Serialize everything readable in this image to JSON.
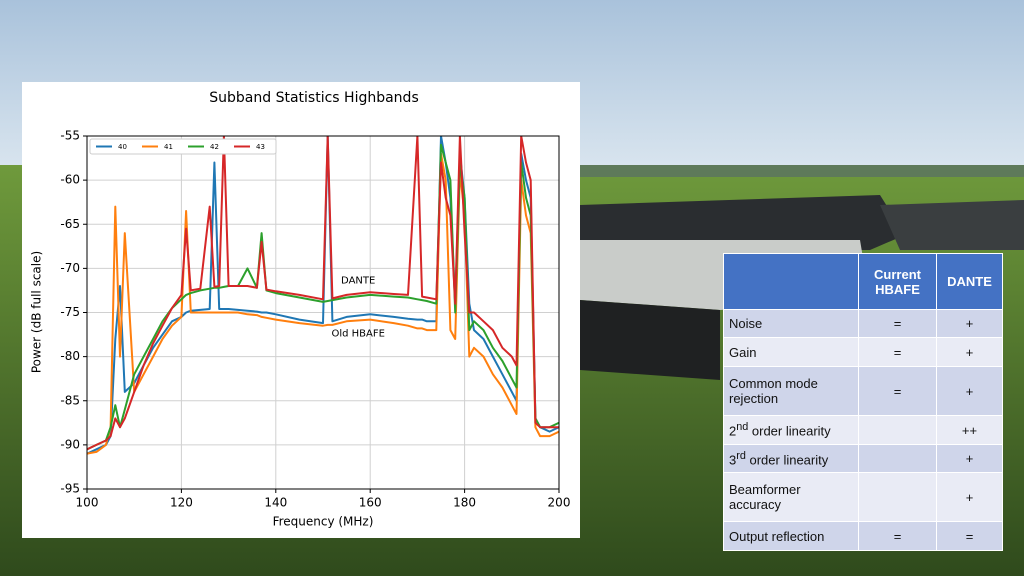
{
  "chart_data": {
    "type": "line",
    "title": "Subband Statistics Highbands",
    "x_label": "Frequency (MHz)",
    "y_label": "Power (dB full scale)",
    "xlim": [
      100,
      200
    ],
    "ylim": [
      -95,
      -55
    ],
    "xticks": [
      100,
      120,
      140,
      160,
      180,
      200
    ],
    "yticks": [
      -95,
      -90,
      -85,
      -80,
      -75,
      -70,
      -65,
      -60,
      -55
    ],
    "grid": true,
    "legend": "upper-left",
    "annotations": [
      "DANTE",
      "Old HBAFE"
    ],
    "x": [
      100,
      102,
      104,
      105,
      106,
      107,
      108,
      110,
      112,
      114,
      116,
      118,
      120,
      121,
      122,
      124,
      126,
      127,
      128,
      129,
      130,
      132,
      134,
      136,
      137,
      138,
      140,
      145,
      150,
      151,
      152,
      155,
      160,
      165,
      168,
      170,
      171,
      172,
      174,
      175,
      176,
      177,
      178,
      179,
      180,
      181,
      182,
      184,
      186,
      188,
      190,
      191,
      192,
      193,
      194,
      195,
      196,
      198,
      200
    ],
    "series": [
      {
        "name": "40",
        "color": "#1f77b4",
        "values": [
          -91,
          -90.5,
          -90,
          -89,
          -78,
          -72,
          -84,
          -83,
          -81,
          -79,
          -77.5,
          -76,
          -75.5,
          -75,
          -74.8,
          -74.7,
          -74.6,
          -58,
          -74.6,
          -74.6,
          -74.6,
          -74.7,
          -74.8,
          -74.9,
          -75,
          -75,
          -75.2,
          -75.8,
          -76.2,
          -55,
          -76,
          -75.5,
          -75.2,
          -75.5,
          -75.7,
          -75.8,
          -75.8,
          -76,
          -76,
          -55,
          -58,
          -62,
          -74,
          -57,
          -62,
          -74,
          -77,
          -78,
          -80,
          -82,
          -84,
          -85,
          -57,
          -60,
          -62,
          -87,
          -88,
          -88.5,
          -88
        ]
      },
      {
        "name": "41",
        "color": "#ff7f0e",
        "values": [
          -91,
          -90.8,
          -90,
          -88,
          -63,
          -80,
          -66,
          -84,
          -82,
          -80,
          -78,
          -76.5,
          -75.5,
          -63.5,
          -75,
          -75,
          -75,
          -75,
          -75,
          -75,
          -75,
          -75,
          -75.2,
          -75.3,
          -75.5,
          -75.6,
          -75.8,
          -76.2,
          -76.5,
          -76.4,
          -76.4,
          -76,
          -75.8,
          -76.2,
          -76.5,
          -76.8,
          -76.8,
          -77,
          -77,
          -57,
          -60,
          -77,
          -78,
          -59,
          -64,
          -80,
          -79,
          -80,
          -82,
          -83.5,
          -85.5,
          -86.5,
          -60,
          -64,
          -66,
          -88,
          -89,
          -89,
          -88.5
        ]
      },
      {
        "name": "42",
        "color": "#2ca02c",
        "values": [
          -90.5,
          -90,
          -89.5,
          -88,
          -85.5,
          -88,
          -86,
          -82,
          -80,
          -78,
          -76,
          -74.5,
          -73.5,
          -73,
          -72.8,
          -72.5,
          -72.3,
          -72.2,
          -72.2,
          -72.1,
          -72,
          -72,
          -70,
          -72.2,
          -66,
          -72.5,
          -72.8,
          -73.3,
          -73.8,
          -73.7,
          -73.6,
          -73.3,
          -73,
          -73.2,
          -73.3,
          -73.5,
          -73.6,
          -73.7,
          -74,
          -56,
          -58,
          -60,
          -75,
          -58,
          -62,
          -77,
          -76,
          -77,
          -79,
          -80.5,
          -82.5,
          -83.5,
          -58,
          -62,
          -64,
          -87,
          -88,
          -88,
          -87.5
        ]
      },
      {
        "name": "43",
        "color": "#d62728",
        "values": [
          -90.5,
          -90,
          -89.5,
          -89,
          -87,
          -88,
          -87,
          -84,
          -81,
          -78.5,
          -76.5,
          -74.5,
          -73,
          -65.5,
          -72.5,
          -72.3,
          -63,
          -72.1,
          -72,
          -55,
          -72,
          -72,
          -72,
          -72.2,
          -67,
          -72.4,
          -72.6,
          -73,
          -73.5,
          -55,
          -73.4,
          -73,
          -72.7,
          -72.9,
          -73,
          -55,
          -73.2,
          -73.3,
          -73.5,
          -58,
          -62,
          -64,
          -74,
          -55,
          -66,
          -75,
          -75,
          -76,
          -77,
          -79,
          -80,
          -81,
          -55,
          -58,
          -60,
          -87.5,
          -88,
          -88,
          -88
        ]
      }
    ]
  },
  "table": {
    "header": [
      "Current HBAFE",
      "DANTE"
    ],
    "rows": [
      [
        "Noise",
        "=",
        "+"
      ],
      [
        "Gain",
        "=",
        "+"
      ],
      [
        "Common mode rejection",
        "=",
        "+"
      ],
      [
        {
          "number": "2",
          "suffix": "nd",
          "text": " order linearity"
        },
        "",
        "++"
      ],
      [
        {
          "number": "3",
          "suffix": "rd",
          "text": " order linearity"
        },
        "",
        "+"
      ],
      [
        "Beamformer accuracy",
        "",
        "+"
      ],
      [
        "Output reflection",
        "=",
        "="
      ]
    ]
  }
}
